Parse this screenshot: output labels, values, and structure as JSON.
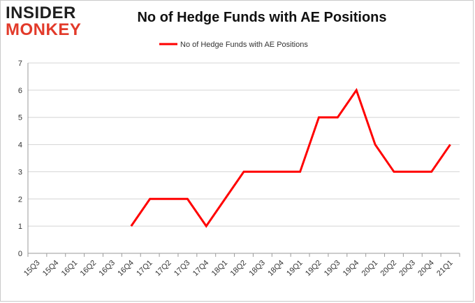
{
  "logo": {
    "line1": "INSIDER",
    "line2": "MONKEY"
  },
  "chart_data": {
    "type": "line",
    "title": "No of Hedge Funds with AE Positions",
    "xlabel": "",
    "ylabel": "",
    "categories": [
      "15Q3",
      "15Q4",
      "16Q1",
      "16Q2",
      "16Q3",
      "16Q4",
      "17Q1",
      "17Q2",
      "17Q3",
      "17Q4",
      "18Q1",
      "18Q2",
      "18Q3",
      "18Q4",
      "19Q1",
      "19Q2",
      "19Q3",
      "19Q4",
      "20Q1",
      "20Q2",
      "20Q3",
      "20Q4",
      "21Q1"
    ],
    "series": [
      {
        "name": "No of Hedge Funds with AE Positions",
        "color": "#ff0000",
        "values": [
          null,
          null,
          null,
          null,
          null,
          1,
          2,
          2,
          2,
          1,
          2,
          3,
          3,
          3,
          3,
          5,
          5,
          6,
          4,
          3,
          3,
          3,
          4
        ]
      }
    ],
    "ylim": [
      0,
      7
    ],
    "yticks": [
      0,
      1,
      2,
      3,
      4,
      5,
      6,
      7
    ],
    "grid": true,
    "legend": "top-center"
  }
}
